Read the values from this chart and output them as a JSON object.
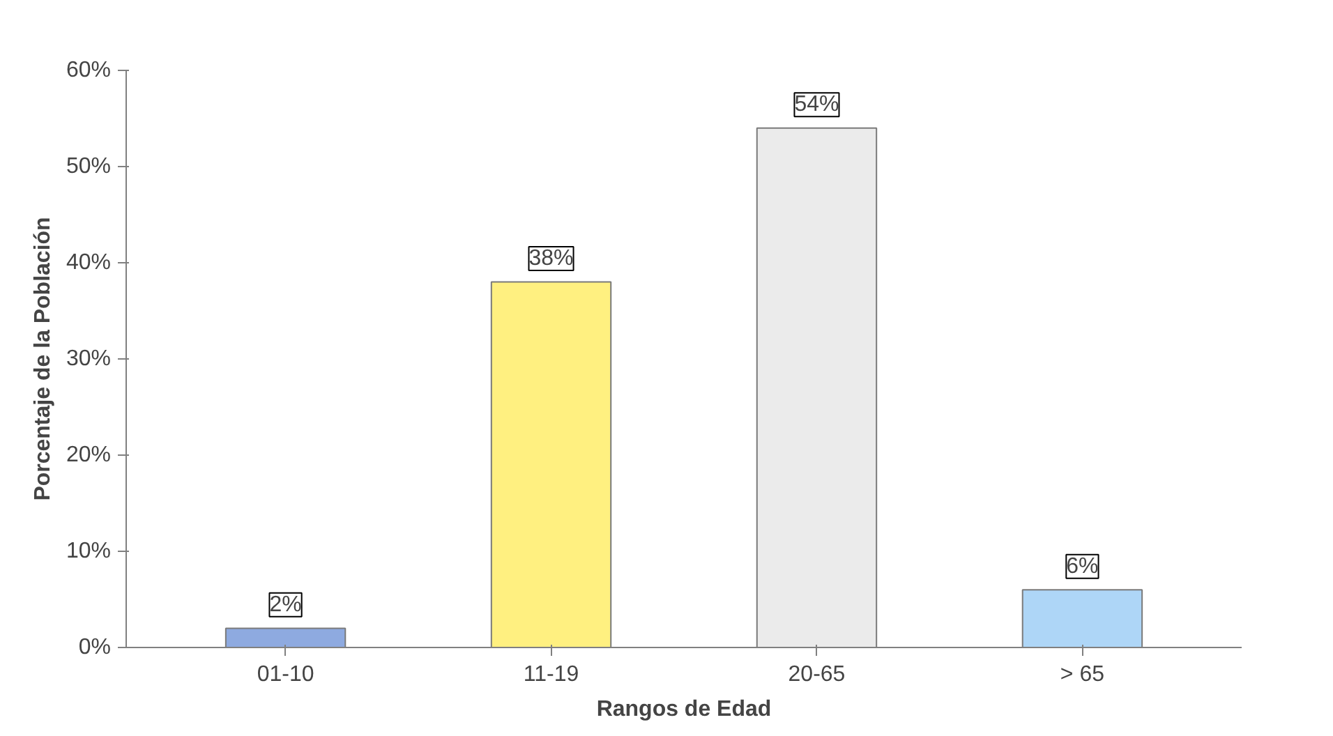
{
  "chart_data": {
    "type": "bar",
    "xlabel": "Rangos de Edad",
    "ylabel": "Porcentaje de la Población",
    "categories": [
      "01-10",
      "11-19",
      "20-65",
      "> 65"
    ],
    "values": [
      2,
      38,
      54,
      6
    ],
    "colors": [
      "#8eaae0",
      "#fff080",
      "#ebebeb",
      "#aed6f7"
    ],
    "value_labels": [
      "2%",
      "38%",
      "54%",
      "6%"
    ],
    "ylim": [
      0,
      60
    ],
    "yticks": [
      {
        "value": 0,
        "label": "0%"
      },
      {
        "value": 10,
        "label": "10%"
      },
      {
        "value": 20,
        "label": "20%"
      },
      {
        "value": 30,
        "label": "30%"
      },
      {
        "value": 40,
        "label": "40%"
      },
      {
        "value": 50,
        "label": "50%"
      },
      {
        "value": 60,
        "label": "60%"
      }
    ],
    "grid": false
  }
}
